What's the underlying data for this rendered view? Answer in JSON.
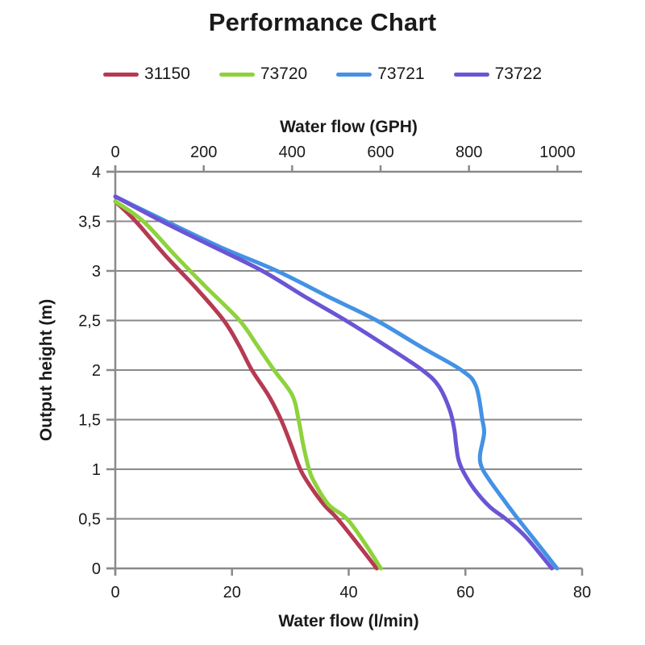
{
  "chart_data": {
    "type": "line",
    "title": "Performance Chart",
    "grid": "horizontal",
    "legend_position": "top-center",
    "colors": {
      "axis": "#8a8a8a",
      "text": "#1a1a1a",
      "background": "#ffffff"
    },
    "x_bottom": {
      "label": "Water flow (l/min)",
      "min": 0,
      "max": 80,
      "ticks": [
        0,
        20,
        40,
        60,
        80
      ]
    },
    "x_top": {
      "label": "Water flow (GPH)",
      "min": 0,
      "max": 1055.8,
      "ticks": [
        0,
        200,
        400,
        600,
        800,
        1000
      ]
    },
    "y": {
      "label": "Output height (m)",
      "min": 0,
      "max": 4,
      "ticks": [
        0,
        0.5,
        1,
        1.5,
        2,
        2.5,
        3,
        3.5,
        4
      ],
      "tick_labels": [
        "0",
        "0,5",
        "1",
        "1,5",
        "2",
        "2,5",
        "3",
        "3,5",
        "4"
      ]
    },
    "series": [
      {
        "name": "31150",
        "color": "#b53a52",
        "points": [
          [
            0,
            3.7
          ],
          [
            3.5,
            3.5
          ],
          [
            8.5,
            3.16
          ],
          [
            13.8,
            2.83
          ],
          [
            18.6,
            2.5
          ],
          [
            21.2,
            2.25
          ],
          [
            23.4,
            2.0
          ],
          [
            26.2,
            1.75
          ],
          [
            28.4,
            1.5
          ],
          [
            30.1,
            1.25
          ],
          [
            31.7,
            1.0
          ],
          [
            33.3,
            0.84
          ],
          [
            35.8,
            0.64
          ],
          [
            38.1,
            0.5
          ],
          [
            41.5,
            0.25
          ],
          [
            44.8,
            0
          ]
        ]
      },
      {
        "name": "73720",
        "color": "#8ed23c",
        "points": [
          [
            0,
            3.7
          ],
          [
            4.8,
            3.5
          ],
          [
            10.2,
            3.16
          ],
          [
            15.5,
            2.84
          ],
          [
            21.3,
            2.5
          ],
          [
            24.3,
            2.25
          ],
          [
            27.2,
            2.0
          ],
          [
            30.3,
            1.75
          ],
          [
            31.4,
            1.5
          ],
          [
            32.2,
            1.25
          ],
          [
            33.2,
            1.0
          ],
          [
            34.3,
            0.85
          ],
          [
            36.6,
            0.64
          ],
          [
            39.7,
            0.5
          ],
          [
            42.8,
            0.25
          ],
          [
            45.5,
            0
          ]
        ]
      },
      {
        "name": "73721",
        "color": "#4492e4",
        "points": [
          [
            0,
            3.75
          ],
          [
            8,
            3.52
          ],
          [
            18,
            3.24
          ],
          [
            27.7,
            3.0
          ],
          [
            36.5,
            2.74
          ],
          [
            44.8,
            2.5
          ],
          [
            52.5,
            2.23
          ],
          [
            59.3,
            2.0
          ],
          [
            61.8,
            1.84
          ],
          [
            62.9,
            1.5
          ],
          [
            63.2,
            1.36
          ],
          [
            62.5,
            1.14
          ],
          [
            62.8,
            1.02
          ],
          [
            64,
            0.9
          ],
          [
            66.2,
            0.72
          ],
          [
            69,
            0.5
          ],
          [
            72.5,
            0.24
          ],
          [
            75.7,
            0
          ]
        ]
      },
      {
        "name": "73722",
        "color": "#6b55d4",
        "points": [
          [
            0,
            3.75
          ],
          [
            8,
            3.5
          ],
          [
            16.6,
            3.25
          ],
          [
            25.2,
            3.0
          ],
          [
            32.5,
            2.74
          ],
          [
            39.5,
            2.5
          ],
          [
            46.5,
            2.24
          ],
          [
            52.6,
            2.0
          ],
          [
            55.4,
            1.84
          ],
          [
            57.3,
            1.6
          ],
          [
            58.1,
            1.4
          ],
          [
            58.4,
            1.25
          ],
          [
            58.8,
            1.1
          ],
          [
            59.6,
            0.98
          ],
          [
            61.5,
            0.8
          ],
          [
            64.2,
            0.62
          ],
          [
            66.9,
            0.5
          ],
          [
            70.3,
            0.32
          ],
          [
            74.8,
            0
          ]
        ]
      }
    ]
  }
}
